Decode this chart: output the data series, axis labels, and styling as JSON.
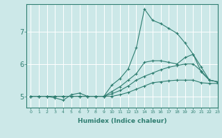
{
  "xlabel": "Humidex (Indice chaleur)",
  "bg_color": "#cce8e8",
  "grid_color": "#ffffff",
  "line_color": "#2e7d70",
  "xlim": [
    -0.5,
    23
  ],
  "ylim": [
    4.65,
    7.85
  ],
  "xticks": [
    0,
    1,
    2,
    3,
    4,
    5,
    6,
    7,
    8,
    9,
    10,
    11,
    12,
    13,
    14,
    15,
    16,
    17,
    18,
    19,
    20,
    21,
    22,
    23
  ],
  "yticks": [
    5,
    6,
    7
  ],
  "lines": [
    {
      "x": [
        0,
        1,
        2,
        3,
        4,
        5,
        6,
        7,
        8,
        9,
        10,
        11,
        12,
        13,
        14,
        15,
        16,
        17,
        18,
        19,
        20,
        21,
        22,
        23
      ],
      "y": [
        5.0,
        5.0,
        5.0,
        4.95,
        4.88,
        5.05,
        5.1,
        5.0,
        5.0,
        5.0,
        5.35,
        5.55,
        5.85,
        6.5,
        7.7,
        7.35,
        7.25,
        7.1,
        6.95,
        6.65,
        6.3,
        5.75,
        5.5,
        5.45
      ]
    },
    {
      "x": [
        0,
        1,
        2,
        3,
        4,
        5,
        6,
        7,
        8,
        9,
        10,
        11,
        12,
        13,
        14,
        15,
        16,
        17,
        18,
        19,
        20,
        21,
        22,
        23
      ],
      "y": [
        5.0,
        5.0,
        5.0,
        5.0,
        5.0,
        5.0,
        5.0,
        5.0,
        5.0,
        5.0,
        5.15,
        5.3,
        5.5,
        5.7,
        6.05,
        6.1,
        6.1,
        6.05,
        6.0,
        6.2,
        6.3,
        5.9,
        5.5,
        5.45
      ]
    },
    {
      "x": [
        0,
        1,
        2,
        3,
        4,
        5,
        6,
        7,
        8,
        9,
        10,
        11,
        12,
        13,
        14,
        15,
        16,
        17,
        18,
        19,
        20,
        21,
        22,
        23
      ],
      "y": [
        5.0,
        5.0,
        5.0,
        5.0,
        5.0,
        5.0,
        5.0,
        5.0,
        5.0,
        5.0,
        5.08,
        5.18,
        5.32,
        5.5,
        5.62,
        5.72,
        5.82,
        5.9,
        5.95,
        6.0,
        6.0,
        5.78,
        5.5,
        5.45
      ]
    },
    {
      "x": [
        0,
        1,
        2,
        3,
        4,
        5,
        6,
        7,
        8,
        9,
        10,
        11,
        12,
        13,
        14,
        15,
        16,
        17,
        18,
        19,
        20,
        21,
        22,
        23
      ],
      "y": [
        5.0,
        5.0,
        5.0,
        5.0,
        5.0,
        5.0,
        5.0,
        5.0,
        5.0,
        5.0,
        5.0,
        5.05,
        5.12,
        5.22,
        5.32,
        5.42,
        5.45,
        5.48,
        5.5,
        5.5,
        5.5,
        5.42,
        5.4,
        5.4
      ]
    }
  ]
}
